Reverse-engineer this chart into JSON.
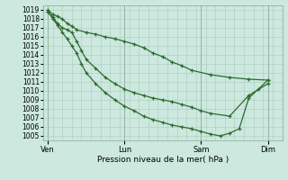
{
  "xlabel": "Pression niveau de la mer( hPa )",
  "ylim": [
    1004.5,
    1019.5
  ],
  "yticks": [
    1005,
    1006,
    1007,
    1008,
    1009,
    1010,
    1011,
    1012,
    1013,
    1014,
    1015,
    1016,
    1017,
    1018,
    1019
  ],
  "bg_color": "#cce8df",
  "grid_color": "#aaccbb",
  "line_color": "#2d6a2d",
  "xlim": [
    -1,
    49
  ],
  "xtick_positions": [
    0,
    16,
    32,
    46
  ],
  "xtick_labels": [
    "Ven",
    "Lun",
    "Sam",
    "Dim"
  ],
  "vline_positions": [
    0,
    16,
    32,
    46
  ],
  "s1_x": [
    0,
    1,
    2,
    3,
    4,
    5,
    6,
    8,
    10,
    12,
    14,
    16,
    18,
    20,
    22,
    24,
    26,
    28,
    30,
    34,
    38,
    42,
    46
  ],
  "s1_y": [
    1019.0,
    1018.5,
    1018.3,
    1018.0,
    1017.5,
    1017.2,
    1016.8,
    1016.5,
    1016.3,
    1016.0,
    1015.8,
    1015.5,
    1015.2,
    1014.8,
    1014.2,
    1013.8,
    1013.2,
    1012.8,
    1012.3,
    1011.8,
    1011.5,
    1011.3,
    1011.2
  ],
  "s2_x": [
    0,
    1,
    2,
    3,
    4,
    5,
    6,
    7,
    8,
    10,
    12,
    14,
    16,
    18,
    20,
    22,
    24,
    26,
    28,
    30,
    32,
    34,
    38,
    42,
    46
  ],
  "s2_y": [
    1018.8,
    1018.2,
    1017.5,
    1017.0,
    1016.8,
    1016.5,
    1015.5,
    1014.5,
    1013.5,
    1012.5,
    1011.5,
    1010.8,
    1010.2,
    1009.8,
    1009.5,
    1009.2,
    1009.0,
    1008.8,
    1008.5,
    1008.2,
    1007.8,
    1007.5,
    1007.2,
    1009.5,
    1010.8
  ],
  "s3_x": [
    0,
    1,
    2,
    3,
    4,
    5,
    6,
    7,
    8,
    10,
    12,
    14,
    16,
    18,
    20,
    22,
    24,
    26,
    28,
    30,
    32,
    34,
    36,
    38,
    40,
    42,
    44,
    46
  ],
  "s3_y": [
    1018.8,
    1018.0,
    1017.3,
    1016.5,
    1015.8,
    1015.0,
    1014.2,
    1013.0,
    1012.0,
    1010.8,
    1009.8,
    1009.0,
    1008.3,
    1007.8,
    1007.2,
    1006.8,
    1006.5,
    1006.2,
    1006.0,
    1005.8,
    1005.5,
    1005.2,
    1005.0,
    1005.3,
    1005.8,
    1009.2,
    1010.2,
    1011.2
  ]
}
